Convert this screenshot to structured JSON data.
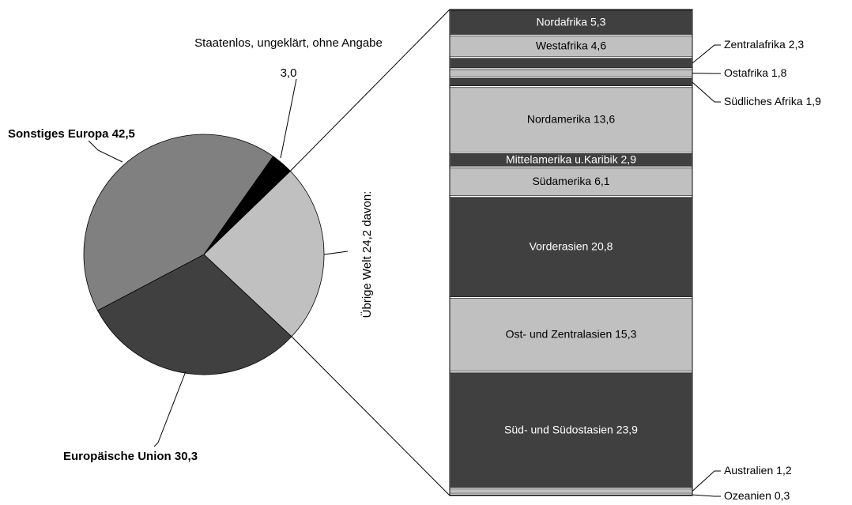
{
  "chart_data": [
    {
      "type": "pie",
      "categories": [
        "Übrige Welt",
        "Europäische Union",
        "Sonstiges Europa",
        "Staatenlos, ungeklärt, ohne Angabe"
      ],
      "values": [
        24.2,
        30.3,
        42.5,
        3.0
      ],
      "value_labels": [
        "24,2",
        "30,3",
        "42,5",
        "3,0"
      ],
      "colors": [
        "#c0c0c0",
        "#404040",
        "#808080",
        "#000000"
      ],
      "annotation": "davon:"
    },
    {
      "type": "stacked_bar",
      "categories": [
        "Nordafrika",
        "Westafrika",
        "Zentralafrika",
        "Ostafrika",
        "Südliches Afrika",
        "Nordamerika",
        "Mittelamerika u.Karibik",
        "Südamerika",
        "Vorderasien",
        "Ost- und Zentralasien",
        "Süd- und Südostasien",
        "Australien",
        "Ozeanien"
      ],
      "values": [
        5.3,
        4.6,
        2.3,
        1.8,
        1.9,
        13.6,
        2.9,
        6.1,
        20.8,
        15.3,
        23.9,
        1.2,
        0.3
      ],
      "value_labels": [
        "5,3",
        "4,6",
        "2,3",
        "1,8",
        "1,9",
        "13,6",
        "2,9",
        "6,1",
        "20,8",
        "15,3",
        "23,9",
        "1,2",
        "0,3"
      ],
      "colors": [
        "#404040",
        "#c0c0c0",
        "#404040",
        "#c0c0c0",
        "#404040",
        "#c0c0c0",
        "#404040",
        "#c0c0c0",
        "#404040",
        "#c0c0c0",
        "#404040",
        "#c0c0c0",
        "#c0c0c0"
      ]
    }
  ]
}
